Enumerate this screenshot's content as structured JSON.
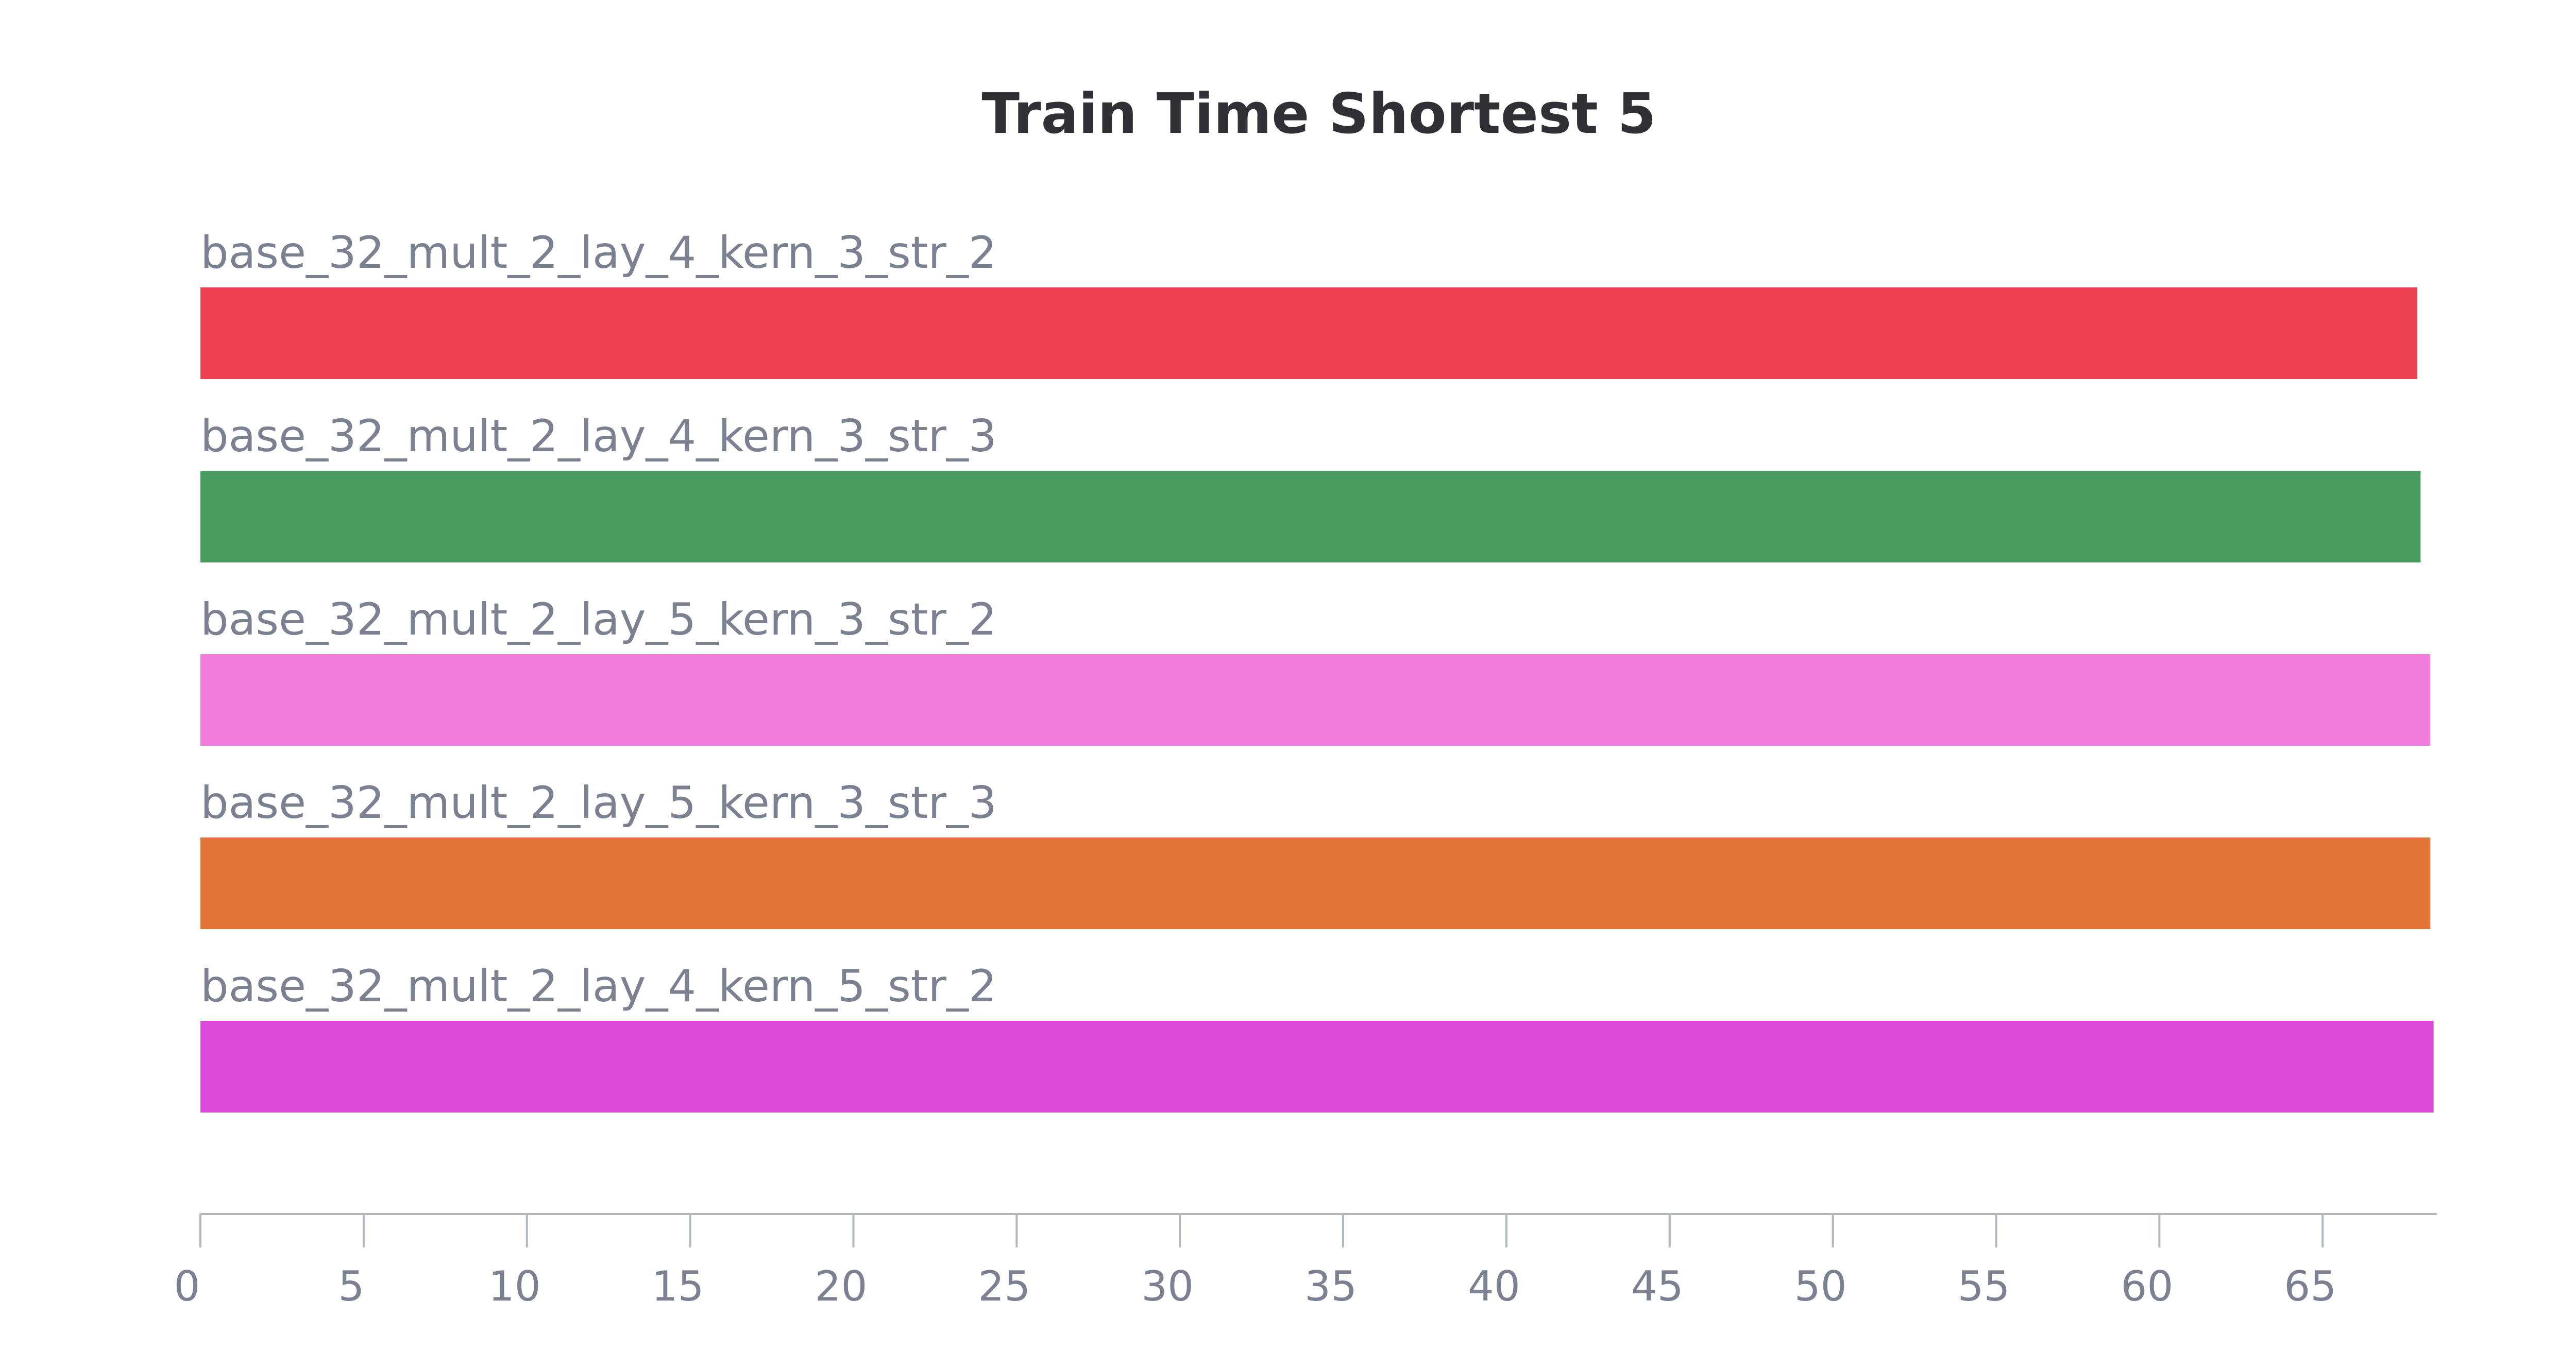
{
  "chart_data": {
    "type": "bar",
    "orientation": "horizontal",
    "title": "Train Time Shortest 5",
    "xlabel": "",
    "ylabel": "",
    "xlim": [
      0,
      68.5
    ],
    "grid": false,
    "legend": "none",
    "categories": [
      "base_32_mult_2_lay_4_kern_3_str_2",
      "base_32_mult_2_lay_4_kern_3_str_3",
      "base_32_mult_2_lay_5_kern_3_str_2",
      "base_32_mult_2_lay_5_kern_3_str_3",
      "base_32_mult_2_lay_4_kern_5_str_2"
    ],
    "values": [
      67.9,
      68.0,
      68.3,
      68.3,
      68.4
    ],
    "colors": [
      "#ef4150",
      "#489b5f",
      "#f07ddc",
      "#e27438",
      "#db4ad9"
    ],
    "x_ticks": [
      "0",
      "5",
      "10",
      "15",
      "20",
      "25",
      "30",
      "35",
      "40",
      "45",
      "50",
      "55",
      "60",
      "65"
    ]
  }
}
